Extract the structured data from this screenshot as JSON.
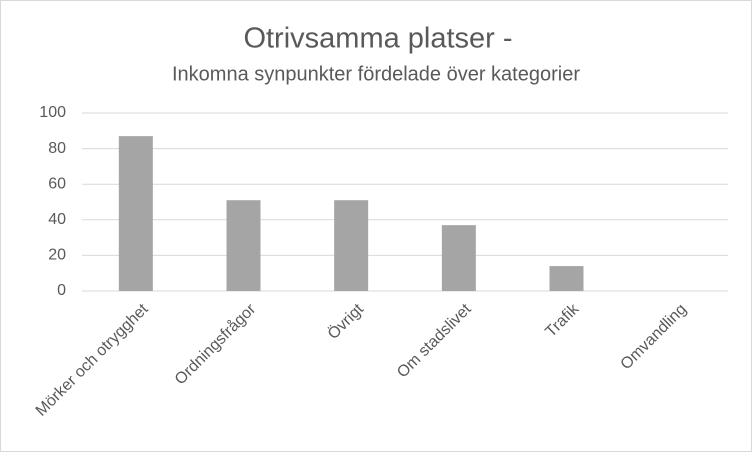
{
  "chart_data": {
    "type": "bar",
    "title": "Otrivsamma platser -",
    "subtitle": "Inkomna synpunkter fördelade över kategorier",
    "categories": [
      "Mörker och otrygghet",
      "Ordningsfrågor",
      "Övrigt",
      "Om stadslivet",
      "Trafik",
      "Omvandling"
    ],
    "values": [
      87,
      51,
      51,
      37,
      14,
      0
    ],
    "color": "#a5a5a5",
    "ylim": [
      0,
      100
    ],
    "yticks": [
      0,
      20,
      40,
      60,
      80,
      100
    ],
    "grid": true
  }
}
